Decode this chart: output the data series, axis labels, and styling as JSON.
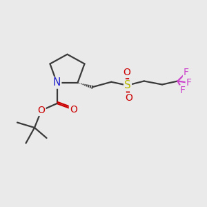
{
  "bg_color": "#eaeaea",
  "bond_color": "#3a3a3a",
  "N_color": "#2222cc",
  "O_color": "#cc0000",
  "S_color": "#b8b800",
  "F_color": "#cc44cc",
  "line_width": 1.6,
  "font_size_atom": 11,
  "font_size_small": 10,
  "xlim": [
    0,
    12
  ],
  "ylim": [
    0,
    10
  ]
}
